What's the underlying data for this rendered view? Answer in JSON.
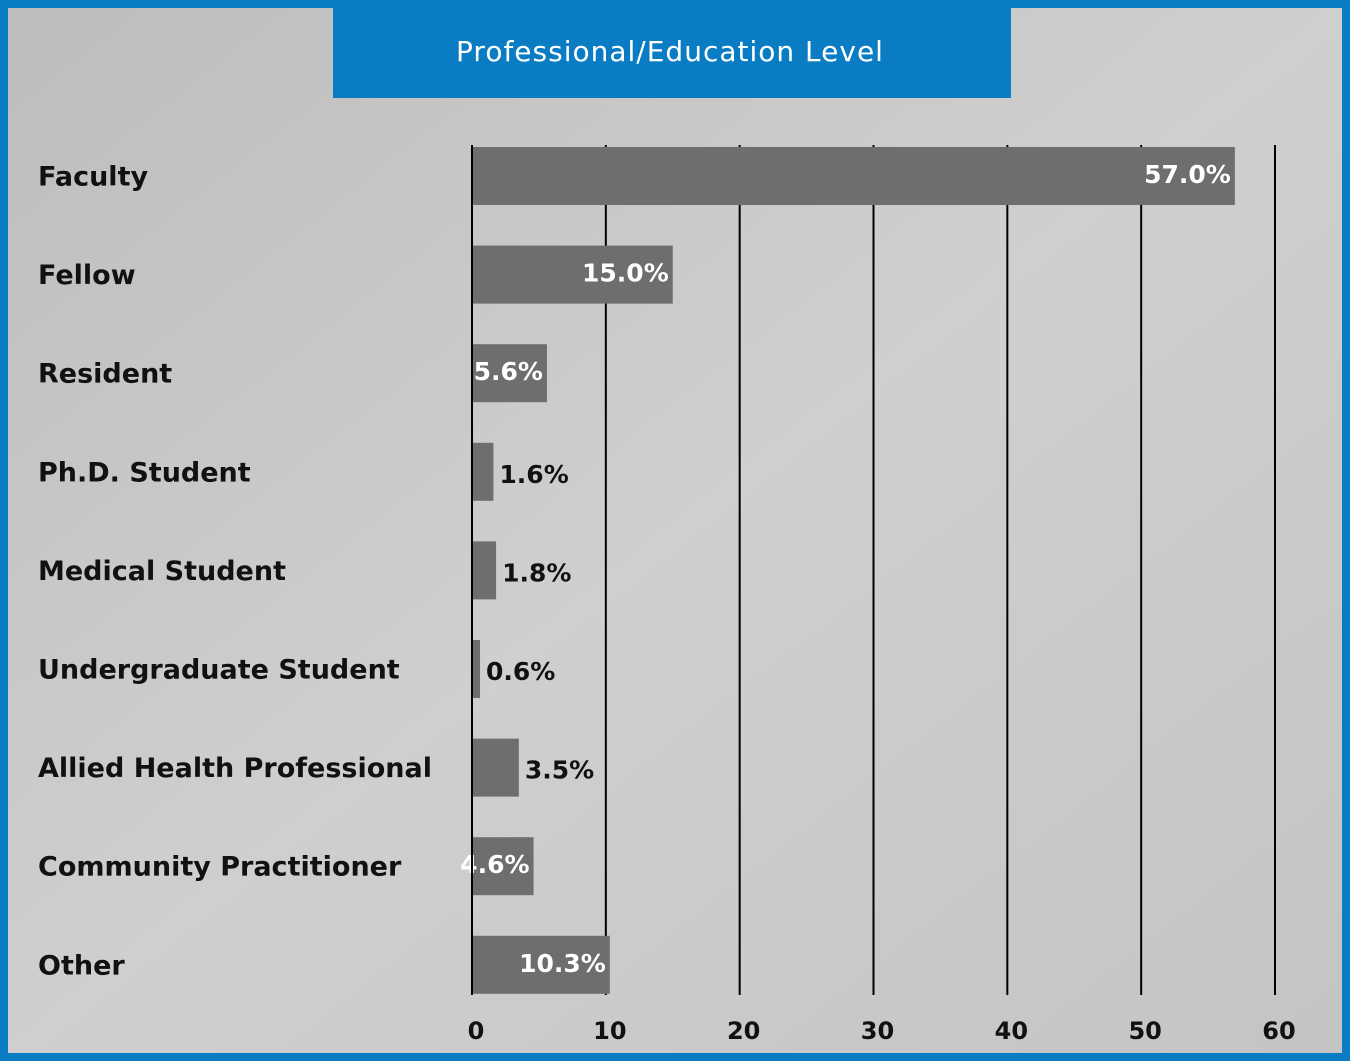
{
  "chart_data": {
    "type": "hbar",
    "title": "Professional/Education Level",
    "categories": [
      "Faculty",
      "Fellow",
      "Resident",
      "Ph.D. Student",
      "Medical Student",
      "Undergraduate Student",
      "Allied Health Professional",
      "Community Practitioner",
      "Other"
    ],
    "values": [
      57.0,
      15.0,
      5.6,
      1.6,
      1.8,
      0.6,
      3.5,
      4.6,
      10.3
    ],
    "value_labels": [
      "57.0%",
      "15.0%",
      "5.6%",
      "1.6%",
      "1.8%",
      "0.6%",
      "3.5%",
      "4.6%",
      "10.3%"
    ],
    "color": "#6e6e6e",
    "xlim": [
      0,
      60
    ],
    "xticks": [
      0,
      10,
      20,
      30,
      40,
      50,
      60
    ],
    "grid": true
  }
}
